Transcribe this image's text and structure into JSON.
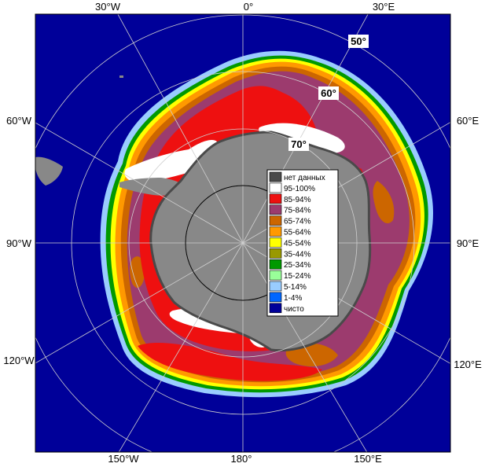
{
  "map": {
    "longitude_labels": {
      "w30": "30°W",
      "zero": "0°",
      "e30": "30°E",
      "w60": "60°W",
      "e60": "60°E",
      "w90": "90°W",
      "e90": "90°E",
      "w120": "120°W",
      "e120": "120°E",
      "w150": "150°W",
      "deg180": "180°",
      "e150": "150°E"
    },
    "latitude_labels": {
      "lat50": "50°",
      "lat60": "60°",
      "lat70": "70°"
    }
  },
  "legend": {
    "items": [
      {
        "label": "нет данных",
        "color": "#4a4a4a"
      },
      {
        "label": "95-100%",
        "color": "#ffffff"
      },
      {
        "label": "85-94%",
        "color": "#ee1010"
      },
      {
        "label": "75-84%",
        "color": "#9c3b6e"
      },
      {
        "label": "65-74%",
        "color": "#cc6600"
      },
      {
        "label": "55-64%",
        "color": "#ff9900"
      },
      {
        "label": "45-54%",
        "color": "#ffff00"
      },
      {
        "label": "35-44%",
        "color": "#999900"
      },
      {
        "label": "25-34%",
        "color": "#009900"
      },
      {
        "label": "15-24%",
        "color": "#99ff99"
      },
      {
        "label": "5-14%",
        "color": "#99ccff"
      },
      {
        "label": "1-4%",
        "color": "#0066ff"
      },
      {
        "label": "чисто",
        "color": "#000099"
      }
    ]
  },
  "colors": {
    "ocean": "#000099",
    "land": "#888888",
    "grid": "#cfcfcf"
  }
}
